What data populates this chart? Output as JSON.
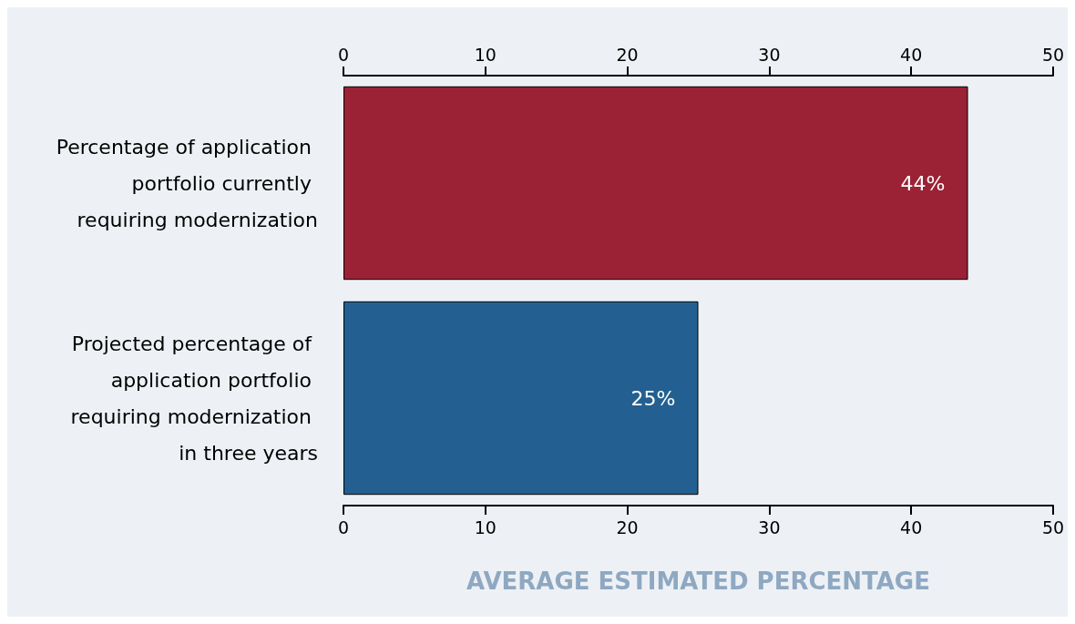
{
  "chart_data": {
    "type": "bar",
    "orientation": "horizontal",
    "categories": [
      "Percentage of application portfolio currently requiring modernization",
      "Projected percentage of application portfolio requiring modernization in three years"
    ],
    "values": [
      44,
      25
    ],
    "colors": [
      "#9b2235",
      "#236091"
    ],
    "value_labels": [
      "44%",
      "25%"
    ],
    "xlabel": "AVERAGE ESTIMATED PERCENTAGE",
    "xlim": [
      0,
      50
    ],
    "xticks": [
      0,
      10,
      20,
      30,
      40,
      50
    ],
    "x2lim": [
      0,
      50
    ],
    "x2ticks": [
      0,
      10,
      20,
      30,
      40,
      50
    ],
    "grid": false
  }
}
